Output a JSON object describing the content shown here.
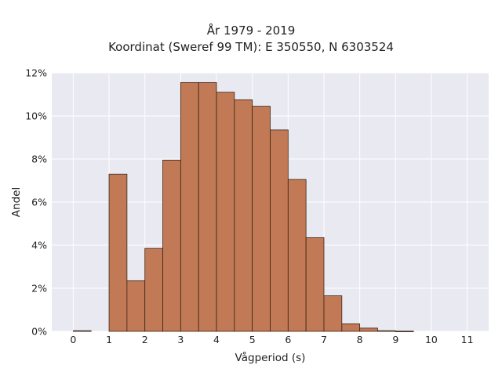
{
  "chart_data": {
    "type": "bar",
    "title": "År 1979 - 2019",
    "subtitle": "Koordinat (Sweref 99 TM): E 350550, N 6303524",
    "xlabel": "Vågperiod (s)",
    "ylabel": "Andel",
    "bin_width": 0.5,
    "bins_start": [
      0,
      0.5,
      1,
      1.5,
      2,
      2.5,
      3,
      3.5,
      4,
      4.5,
      5,
      5.5,
      6,
      6.5,
      7,
      7.5,
      8,
      8.5,
      9,
      9.5,
      10,
      10.5
    ],
    "values": [
      0.03,
      0,
      7.3,
      2.35,
      3.85,
      7.95,
      11.55,
      11.55,
      11.1,
      10.75,
      10.45,
      9.35,
      7.05,
      4.35,
      1.65,
      0.35,
      0.15,
      0.03,
      0.01,
      0,
      0,
      0
    ],
    "xlim": [
      -0.6,
      11.6
    ],
    "ylim": [
      0,
      12
    ],
    "xticks": [
      0,
      1,
      2,
      3,
      4,
      5,
      6,
      7,
      8,
      9,
      10,
      11
    ],
    "xtick_labels": [
      "0",
      "1",
      "2",
      "3",
      "4",
      "5",
      "6",
      "7",
      "8",
      "9",
      "10",
      "11"
    ],
    "yticks": [
      0,
      2,
      4,
      6,
      8,
      10,
      12
    ],
    "ytick_labels": [
      "0%",
      "2%",
      "4%",
      "6%",
      "8%",
      "10%",
      "12%"
    ],
    "grid": true,
    "colors": {
      "bar_fill": "#c17a55",
      "bar_stroke": "#3a2418",
      "plot_bg": "#e9e9f2",
      "grid": "#ffffff"
    }
  }
}
